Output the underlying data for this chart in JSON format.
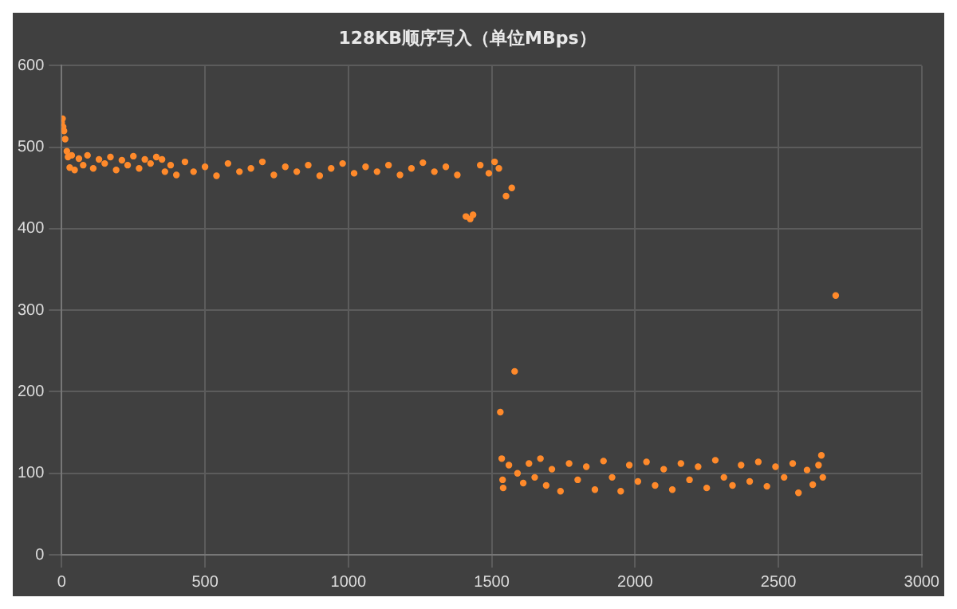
{
  "chart_data": {
    "type": "scatter",
    "title": "128KB顺序写入（单位MBps）",
    "x": [
      0,
      3,
      5,
      8,
      12,
      18,
      22,
      28,
      35,
      45,
      60,
      75,
      90,
      110,
      130,
      150,
      170,
      190,
      210,
      230,
      250,
      270,
      290,
      310,
      330,
      350,
      360,
      380,
      400,
      430,
      460,
      500,
      540,
      580,
      620,
      660,
      700,
      740,
      780,
      820,
      860,
      900,
      940,
      980,
      1020,
      1060,
      1100,
      1140,
      1180,
      1220,
      1260,
      1300,
      1340,
      1380,
      1410,
      1425,
      1435,
      1460,
      1490,
      1510,
      1525,
      1530,
      1535,
      1538,
      1540,
      1550,
      1560,
      1570,
      1580,
      1590,
      1610,
      1630,
      1650,
      1670,
      1690,
      1710,
      1740,
      1770,
      1800,
      1830,
      1860,
      1890,
      1920,
      1950,
      1980,
      2010,
      2040,
      2070,
      2100,
      2130,
      2160,
      2190,
      2220,
      2250,
      2280,
      2310,
      2340,
      2370,
      2400,
      2430,
      2460,
      2490,
      2520,
      2550,
      2570,
      2600,
      2620,
      2640,
      2650,
      2655,
      2700
    ],
    "values": [
      530,
      535,
      525,
      520,
      510,
      495,
      488,
      475,
      490,
      472,
      486,
      478,
      490,
      474,
      485,
      480,
      488,
      472,
      484,
      478,
      489,
      474,
      485,
      480,
      488,
      485,
      470,
      478,
      466,
      482,
      470,
      476,
      465,
      480,
      470,
      474,
      482,
      466,
      476,
      470,
      478,
      465,
      474,
      480,
      468,
      476,
      470,
      478,
      466,
      474,
      481,
      470,
      476,
      466,
      415,
      412,
      417,
      478,
      468,
      482,
      474,
      175,
      118,
      92,
      82,
      440,
      110,
      450,
      225,
      100,
      88,
      112,
      95,
      118,
      85,
      105,
      78,
      112,
      92,
      108,
      80,
      115,
      95,
      78,
      110,
      90,
      114,
      85,
      105,
      80,
      112,
      92,
      108,
      82,
      116,
      95,
      85,
      110,
      90,
      114,
      84,
      108,
      95,
      112,
      76,
      104,
      86,
      110,
      122,
      95,
      318
    ],
    "color": "#ff8a2b",
    "marker": "circle",
    "grid": true,
    "xlim": [
      0,
      3000
    ],
    "xticks": [
      0,
      500,
      1000,
      1500,
      2000,
      2500,
      3000
    ],
    "ylim": [
      0,
      600
    ],
    "yticks": [
      0,
      100,
      200,
      300,
      400,
      500,
      600
    ]
  }
}
